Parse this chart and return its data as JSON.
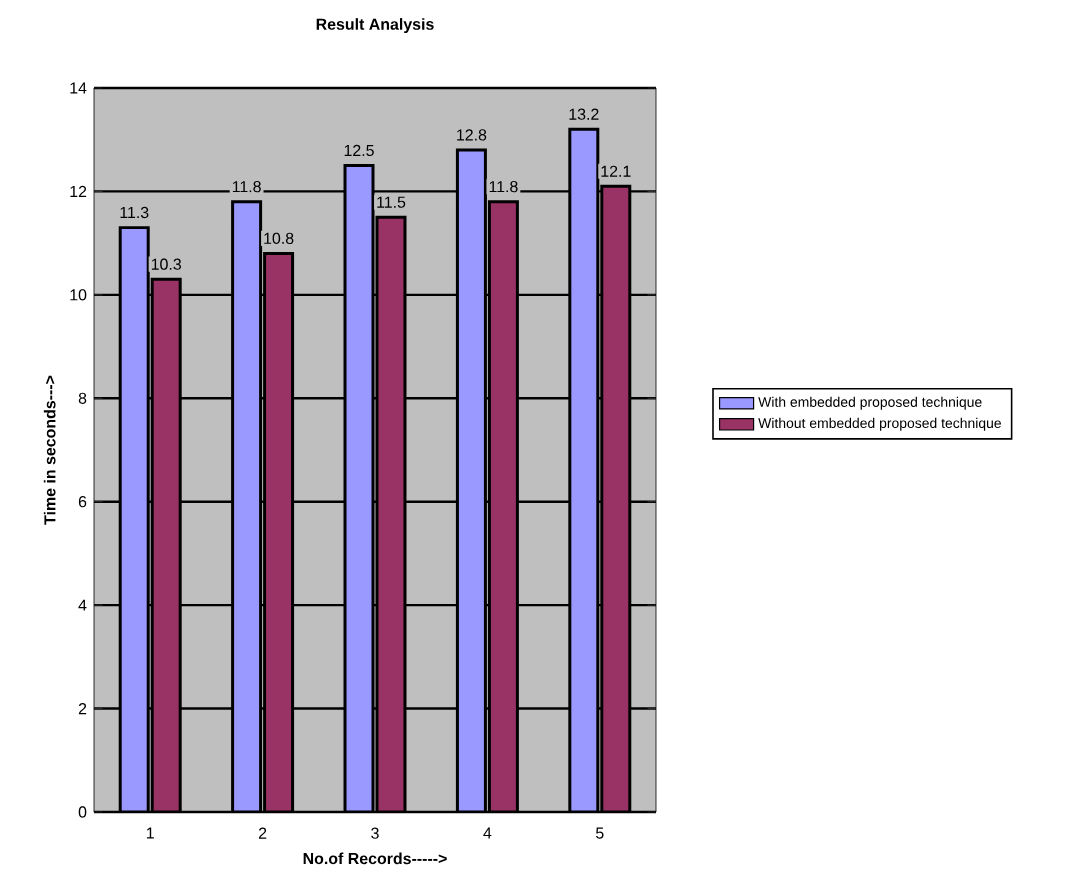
{
  "chart_data": {
    "type": "bar",
    "title": "Result Analysis",
    "xlabel": "No.of Records----->",
    "ylabel": "Time in seconds--->",
    "categories": [
      "1",
      "2",
      "3",
      "4",
      "5"
    ],
    "series": [
      {
        "name": "With embedded proposed technique",
        "color": "#9999ff",
        "values": [
          11.3,
          11.8,
          12.5,
          12.8,
          13.2
        ]
      },
      {
        "name": "Without embedded proposed technique",
        "color": "#993366",
        "values": [
          10.3,
          10.8,
          11.5,
          11.8,
          12.1
        ]
      }
    ],
    "ylim": [
      0,
      14
    ],
    "yticks": [
      0,
      2,
      4,
      6,
      8,
      10,
      12,
      14
    ],
    "grid": "y",
    "legend": "right",
    "data_labels": true
  }
}
